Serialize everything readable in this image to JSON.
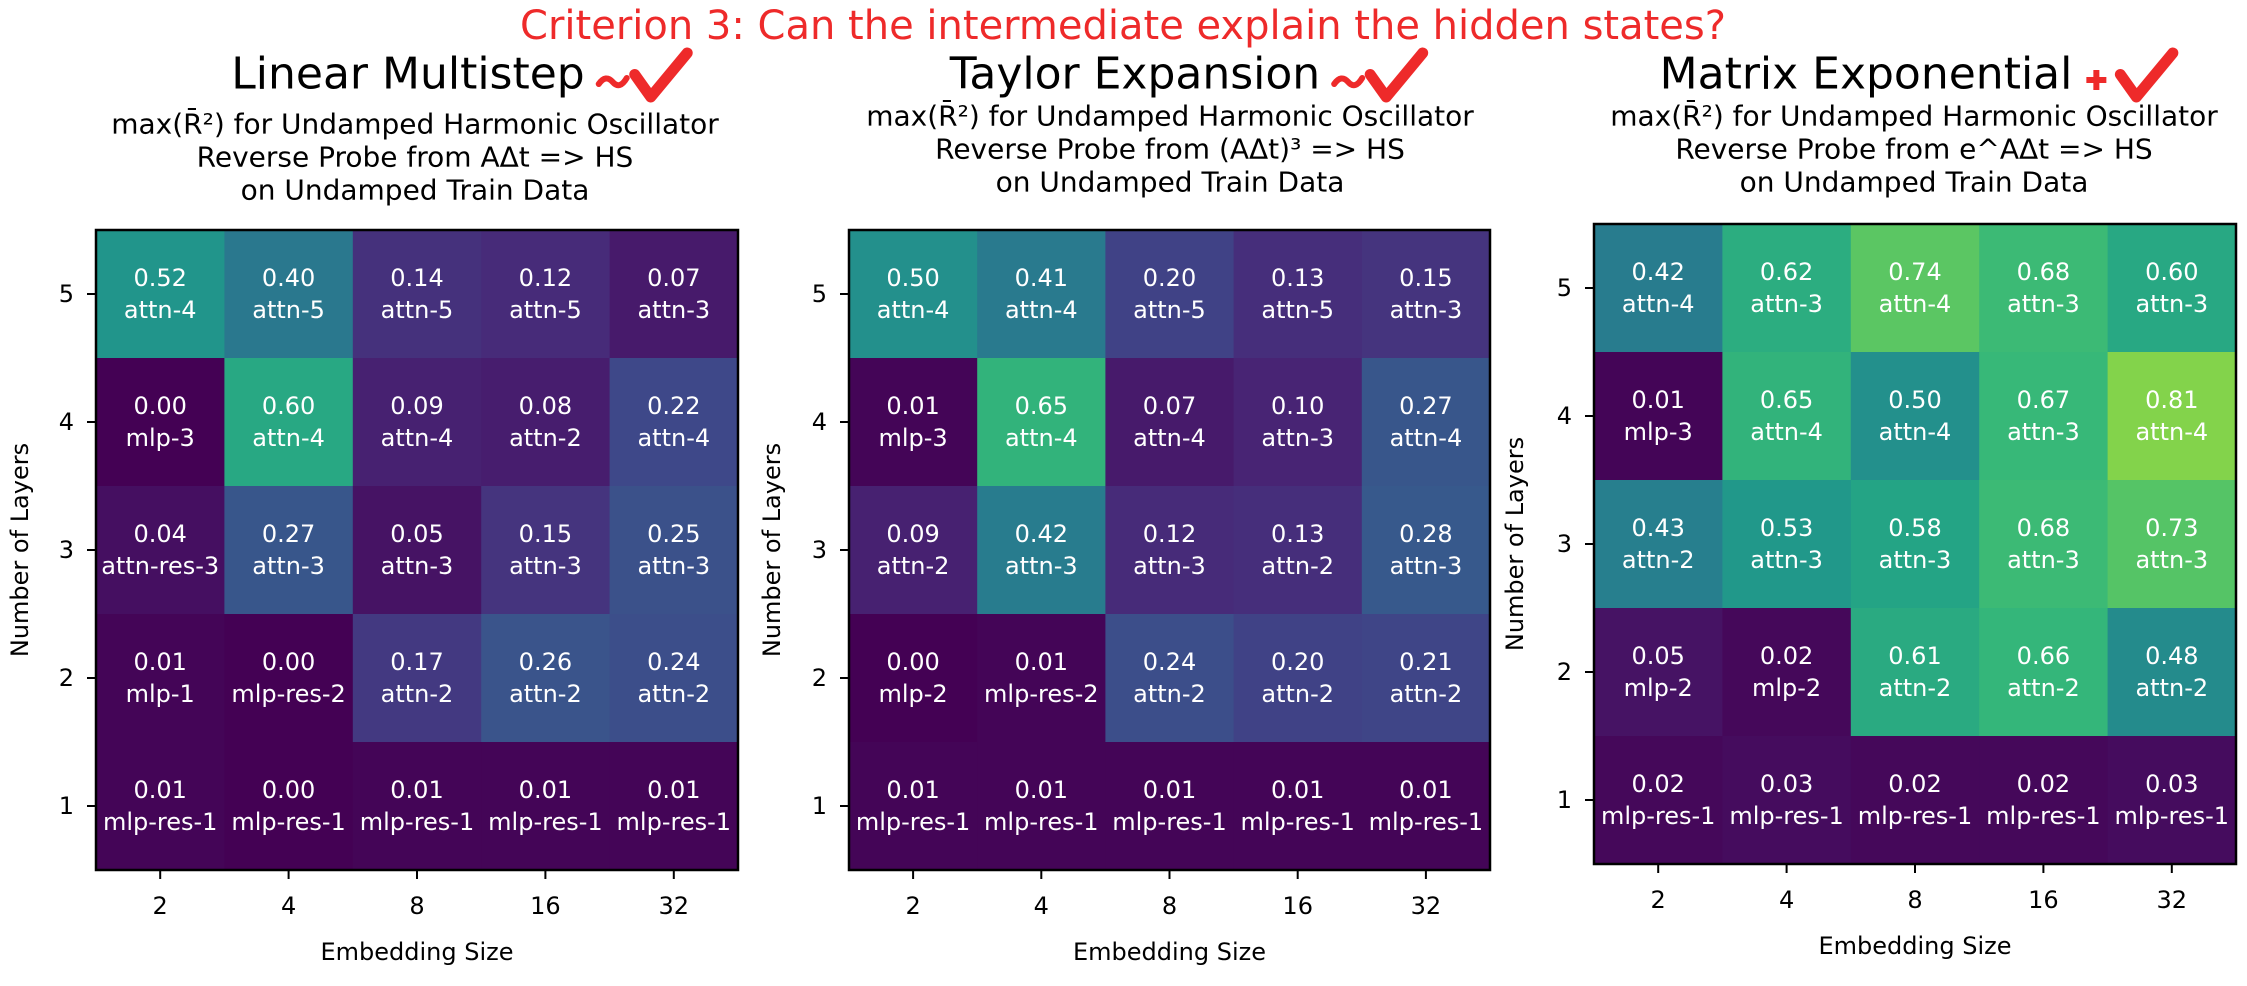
{
  "header": "Criterion 3: Can the intermediate explain the hidden states?",
  "colors": {
    "header": "#ee2a2a",
    "tilde": "#ee2a2a",
    "check": "#ee2a2a",
    "plus": "#ee2a2a",
    "colormap": [
      "#440154",
      "#482878",
      "#3e4989",
      "#31688e",
      "#26828e",
      "#1f9e89",
      "#35b779",
      "#6ece58",
      "#b5de2b",
      "#fde725"
    ]
  },
  "chart_data": [
    {
      "type": "heatmap",
      "heading": "Linear Multistep",
      "marker": "~",
      "title_lines": [
        "max(R̄²) for Undamped Harmonic Oscillator",
        "Reverse Probe from AΔt => HS",
        "on Undamped Train Data"
      ],
      "xlabel": "Embedding Size",
      "ylabel": "Number of Layers",
      "x": [
        "2",
        "4",
        "8",
        "16",
        "32"
      ],
      "y": [
        "5",
        "4",
        "3",
        "2",
        "1"
      ],
      "values": [
        [
          0.52,
          0.4,
          0.14,
          0.12,
          0.07
        ],
        [
          0.0,
          0.6,
          0.09,
          0.08,
          0.22
        ],
        [
          0.04,
          0.27,
          0.05,
          0.15,
          0.25
        ],
        [
          0.01,
          0.0,
          0.17,
          0.26,
          0.24
        ],
        [
          0.01,
          0.0,
          0.01,
          0.01,
          0.01
        ]
      ],
      "values_text": [
        [
          "0.52",
          "0.40",
          "0.14",
          "0.12",
          "0.07"
        ],
        [
          "0.00",
          "0.60",
          "0.09",
          "0.08",
          "0.22"
        ],
        [
          "0.04",
          "0.27",
          "0.05",
          "0.15",
          "0.25"
        ],
        [
          "0.01",
          "0.00",
          "0.17",
          "0.26",
          "0.24"
        ],
        [
          "0.01",
          "0.00",
          "0.01",
          "0.01",
          "0.01"
        ]
      ],
      "labels": [
        [
          "attn-4",
          "attn-5",
          "attn-5",
          "attn-5",
          "attn-3"
        ],
        [
          "mlp-3",
          "attn-4",
          "attn-4",
          "attn-2",
          "attn-4"
        ],
        [
          "attn-res-3",
          "attn-3",
          "attn-3",
          "attn-3",
          "attn-3"
        ],
        [
          "mlp-1",
          "mlp-res-2",
          "attn-2",
          "attn-2",
          "attn-2"
        ],
        [
          "mlp-res-1",
          "mlp-res-1",
          "mlp-res-1",
          "mlp-res-1",
          "mlp-res-1"
        ]
      ],
      "vmin": 0,
      "vmax": 1
    },
    {
      "type": "heatmap",
      "heading": "Taylor Expansion",
      "marker": "~",
      "title_lines": [
        "max(R̄²) for Undamped Harmonic Oscillator",
        "Reverse Probe from (AΔt)³ => HS",
        "on Undamped Train Data"
      ],
      "xlabel": "Embedding Size",
      "ylabel": "Number of Layers",
      "x": [
        "2",
        "4",
        "8",
        "16",
        "32"
      ],
      "y": [
        "5",
        "4",
        "3",
        "2",
        "1"
      ],
      "values": [
        [
          0.5,
          0.41,
          0.2,
          0.13,
          0.15
        ],
        [
          0.01,
          0.65,
          0.07,
          0.1,
          0.27
        ],
        [
          0.09,
          0.42,
          0.12,
          0.13,
          0.28
        ],
        [
          0.0,
          0.01,
          0.24,
          0.2,
          0.21
        ],
        [
          0.01,
          0.01,
          0.01,
          0.01,
          0.01
        ]
      ],
      "values_text": [
        [
          "0.50",
          "0.41",
          "0.20",
          "0.13",
          "0.15"
        ],
        [
          "0.01",
          "0.65",
          "0.07",
          "0.10",
          "0.27"
        ],
        [
          "0.09",
          "0.42",
          "0.12",
          "0.13",
          "0.28"
        ],
        [
          "0.00",
          "0.01",
          "0.24",
          "0.20",
          "0.21"
        ],
        [
          "0.01",
          "0.01",
          "0.01",
          "0.01",
          "0.01"
        ]
      ],
      "labels": [
        [
          "attn-4",
          "attn-4",
          "attn-5",
          "attn-5",
          "attn-3"
        ],
        [
          "mlp-3",
          "attn-4",
          "attn-4",
          "attn-3",
          "attn-4"
        ],
        [
          "attn-2",
          "attn-3",
          "attn-3",
          "attn-2",
          "attn-3"
        ],
        [
          "mlp-2",
          "mlp-res-2",
          "attn-2",
          "attn-2",
          "attn-2"
        ],
        [
          "mlp-res-1",
          "mlp-res-1",
          "mlp-res-1",
          "mlp-res-1",
          "mlp-res-1"
        ]
      ],
      "vmin": 0,
      "vmax": 1
    },
    {
      "type": "heatmap",
      "heading": "Matrix Exponential",
      "marker": "+",
      "title_lines": [
        "max(R̄²) for Undamped Harmonic Oscillator",
        "Reverse Probe from e^AΔt => HS",
        "on Undamped Train Data"
      ],
      "xlabel": "Embedding Size",
      "ylabel": "Number of Layers",
      "x": [
        "2",
        "4",
        "8",
        "16",
        "32"
      ],
      "y": [
        "5",
        "4",
        "3",
        "2",
        "1"
      ],
      "values": [
        [
          0.42,
          0.62,
          0.74,
          0.68,
          0.6
        ],
        [
          0.01,
          0.65,
          0.5,
          0.67,
          0.81
        ],
        [
          0.43,
          0.53,
          0.58,
          0.68,
          0.73
        ],
        [
          0.05,
          0.02,
          0.61,
          0.66,
          0.48
        ],
        [
          0.02,
          0.03,
          0.02,
          0.02,
          0.03
        ]
      ],
      "values_text": [
        [
          "0.42",
          "0.62",
          "0.74",
          "0.68",
          "0.60"
        ],
        [
          "0.01",
          "0.65",
          "0.50",
          "0.67",
          "0.81"
        ],
        [
          "0.43",
          "0.53",
          "0.58",
          "0.68",
          "0.73"
        ],
        [
          "0.05",
          "0.02",
          "0.61",
          "0.66",
          "0.48"
        ],
        [
          "0.02",
          "0.03",
          "0.02",
          "0.02",
          "0.03"
        ]
      ],
      "labels": [
        [
          "attn-4",
          "attn-3",
          "attn-4",
          "attn-3",
          "attn-3"
        ],
        [
          "mlp-3",
          "attn-4",
          "attn-4",
          "attn-3",
          "attn-4"
        ],
        [
          "attn-2",
          "attn-3",
          "attn-3",
          "attn-3",
          "attn-3"
        ],
        [
          "mlp-2",
          "mlp-2",
          "attn-2",
          "attn-2",
          "attn-2"
        ],
        [
          "mlp-res-1",
          "mlp-res-1",
          "mlp-res-1",
          "mlp-res-1",
          "mlp-res-1"
        ]
      ],
      "vmin": 0,
      "vmax": 1
    }
  ]
}
